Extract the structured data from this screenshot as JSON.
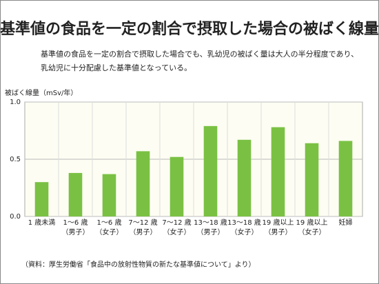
{
  "title": "基準値の食品を一定の割合で摂取した場合の被ばく線量",
  "subtitle_lines": [
    "基準値の食品を一定の割合で摂取した場合でも、乳幼児の被ばく量は大人の半分程度であり、",
    "乳幼児に十分配慮した基準値となっている。"
  ],
  "source": "（資料：厚生労働省「食品中の放射性物質の新たな基準値について」より）",
  "chart_data": {
    "type": "bar",
    "y_label": "被ばく線量（mSv/年）",
    "categories": [
      "1 歳未満",
      "1〜6 歳\n（男子）",
      "1〜6 歳\n（女子）",
      "7〜12 歳\n（男子）",
      "7〜12 歳\n（女子）",
      "13〜18 歳\n（男子）",
      "13〜18 歳\n（女子）",
      "19 歳以上\n（男子）",
      "19 歳以上\n（女子）",
      "妊婦"
    ],
    "values": [
      0.3,
      0.38,
      0.37,
      0.57,
      0.52,
      0.79,
      0.67,
      0.78,
      0.64,
      0.66
    ],
    "color": "#7ac143",
    "ylim": [
      0,
      1
    ],
    "yticks": [
      {
        "value": 0,
        "label": "0.0"
      },
      {
        "value": 0.5,
        "label": "0.5"
      },
      {
        "value": 1,
        "label": "1.0"
      }
    ],
    "grid": true
  }
}
